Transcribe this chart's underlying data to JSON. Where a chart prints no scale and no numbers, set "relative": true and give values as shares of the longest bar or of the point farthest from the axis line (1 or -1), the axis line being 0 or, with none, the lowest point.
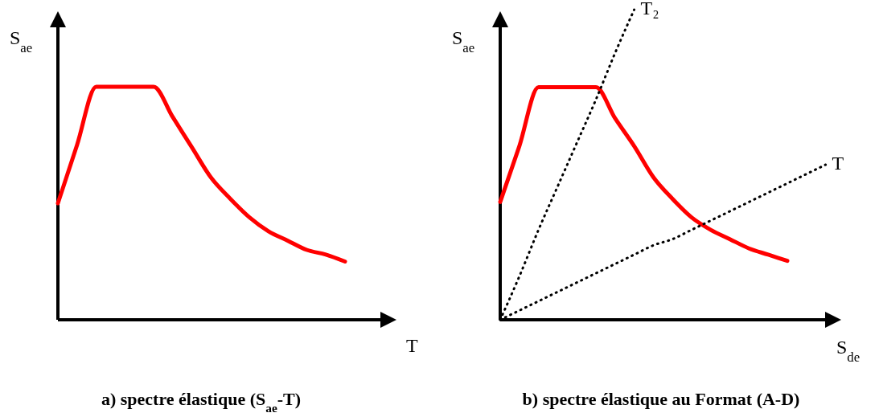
{
  "chart_data": [
    {
      "type": "line",
      "title": "a) spectre élastique (S$_{ae}$-T)",
      "xlabel": "T",
      "ylabel": "S$_{ae}$",
      "relative": true,
      "categories": [
        null,
        null,
        null,
        null,
        null,
        null,
        null,
        null,
        null,
        null,
        null,
        null,
        null,
        null,
        null,
        null,
        null,
        null
      ],
      "series": [
        {
          "color": "#ff0000",
          "values": [
            0.5,
            0.75,
            1,
            1,
            1,
            1,
            0.87,
            0.74,
            0.61,
            0.52,
            0.44,
            0.38,
            0.34,
            0.3,
            0.28,
            0.25,
            null,
            null
          ]
        }
      ]
    },
    {
      "type": "line",
      "title": "b) spectre élastique au  Format (A-D)",
      "xlabel": "S$_{de}$",
      "ylabel": "S$_{ae}$",
      "relative": true,
      "categories": [
        null,
        null,
        null,
        null,
        null,
        null,
        null,
        null,
        null,
        null,
        null,
        null,
        null,
        null,
        null,
        null,
        null,
        null
      ],
      "series": [
        {
          "color": "#ff0000",
          "values": [
            0.38,
            0.56,
            0.75,
            0.75,
            0.75,
            0.75,
            0.65,
            0.56,
            0.46,
            0.39,
            0.33,
            0.29,
            0.26,
            0.23,
            0.21,
            0.19,
            null,
            null
          ]
        },
        {
          "name": "T₂",
          "color": "#000000",
          "line_style": "dotted",
          "values": [
            0,
            0.14,
            0.29,
            0.43,
            0.57,
            0.71,
            0.86,
            1,
            null,
            null,
            null,
            null,
            null,
            null,
            null,
            null,
            null,
            null
          ]
        },
        {
          "name": "T",
          "color": "#000000",
          "line_style": "dotted",
          "values": [
            0,
            0.03,
            0.06,
            0.09,
            0.12,
            0.15,
            0.18,
            0.21,
            0.24,
            0.26,
            0.29,
            0.32,
            0.35,
            0.38,
            0.41,
            0.44,
            0.47,
            0.5
          ]
        }
      ]
    }
  ]
}
